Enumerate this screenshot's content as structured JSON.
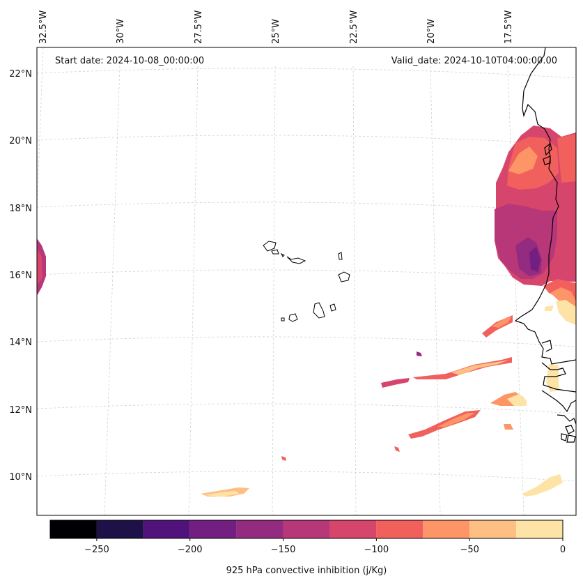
{
  "map": {
    "start_label": "Start date: 2024-10-08_00:00:00",
    "valid_label": "Valid_date: 2024-10-10T04:00:00.00",
    "lon_labels": [
      "32.5°W",
      "30°W",
      "27.5°W",
      "25°W",
      "22.5°W",
      "20°W",
      "17.5°W"
    ],
    "lat_labels": [
      "22°N",
      "20°N",
      "18°N",
      "16°N",
      "14°N",
      "12°N",
      "10°N"
    ]
  },
  "colorbar": {
    "title": "925 hPa convective inhibition (j/Kg)",
    "tick_labels": [
      "−250",
      "−200",
      "−150",
      "−100",
      "−50",
      "0"
    ],
    "min": -275,
    "max": 0,
    "levels": [
      -275,
      -250,
      -225,
      -200,
      -175,
      -150,
      -125,
      -100,
      -75,
      -50,
      -25,
      0
    ],
    "colors": [
      "#000004",
      "#1d1147",
      "#51127c",
      "#721f81",
      "#932b80",
      "#b73779",
      "#d6456c",
      "#f1605d",
      "#fd9567",
      "#febf84",
      "#fde4a6"
    ]
  },
  "colors": {
    "grid": "#cfcfcf",
    "coast": "#000000",
    "frame": "#000000"
  }
}
